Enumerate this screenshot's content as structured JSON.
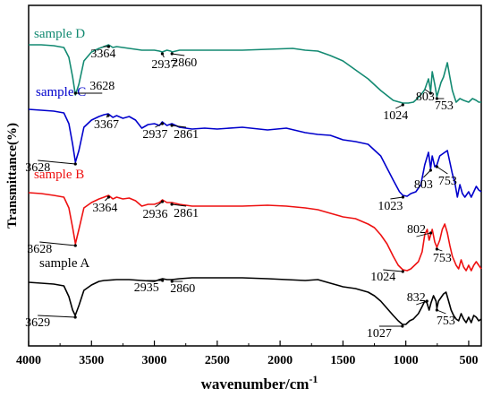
{
  "chart_data": {
    "type": "line",
    "title": "",
    "xlabel": "wavenumber/cm",
    "xlabel_sup": "-1",
    "ylabel": "Transmittance(%)",
    "xlim": [
      4000,
      400
    ],
    "x_reversed": true,
    "xticks": [
      4000,
      3500,
      3000,
      2500,
      2000,
      1500,
      1000,
      500
    ],
    "xtick_labels": [
      "4000",
      "3500",
      "3000",
      "2500",
      "2000",
      "1500",
      "1000",
      "500"
    ],
    "y_tick_labels_shown": false,
    "series": [
      {
        "name": "sample D",
        "color": "#138a72",
        "points": [
          [
            4000,
            44
          ],
          [
            3900,
            44
          ],
          [
            3800,
            45
          ],
          [
            3720,
            47
          ],
          [
            3680,
            58
          ],
          [
            3650,
            80
          ],
          [
            3628,
            100
          ],
          [
            3600,
            88
          ],
          [
            3560,
            62
          ],
          [
            3500,
            52
          ],
          [
            3440,
            48
          ],
          [
            3400,
            46
          ],
          [
            3364,
            44
          ],
          [
            3330,
            47
          ],
          [
            3300,
            46
          ],
          [
            3250,
            47
          ],
          [
            3200,
            48
          ],
          [
            3150,
            49
          ],
          [
            3100,
            50
          ],
          [
            3050,
            50
          ],
          [
            3000,
            50
          ],
          [
            2960,
            51
          ],
          [
            2937,
            52
          ],
          [
            2900,
            50
          ],
          [
            2870,
            51
          ],
          [
            2860,
            52
          ],
          [
            2800,
            50
          ],
          [
            2700,
            50
          ],
          [
            2500,
            50
          ],
          [
            2300,
            50
          ],
          [
            2100,
            49
          ],
          [
            1900,
            48
          ],
          [
            1800,
            50
          ],
          [
            1700,
            51
          ],
          [
            1600,
            56
          ],
          [
            1500,
            62
          ],
          [
            1400,
            72
          ],
          [
            1300,
            82
          ],
          [
            1200,
            95
          ],
          [
            1100,
            106
          ],
          [
            1024,
            109
          ],
          [
            980,
            109
          ],
          [
            940,
            108
          ],
          [
            900,
            103
          ],
          [
            870,
            98
          ],
          [
            850,
            94
          ],
          [
            820,
            82
          ],
          [
            803,
            96
          ],
          [
            790,
            74
          ],
          [
            770,
            88
          ],
          [
            753,
            102
          ],
          [
            720,
            86
          ],
          [
            700,
            80
          ],
          [
            670,
            64
          ],
          [
            650,
            80
          ],
          [
            630,
            95
          ],
          [
            600,
            108
          ],
          [
            570,
            104
          ],
          [
            540,
            106
          ],
          [
            500,
            108
          ],
          [
            470,
            104
          ],
          [
            440,
            106
          ],
          [
            420,
            108
          ],
          [
            400,
            108
          ]
        ]
      },
      {
        "name": "sample C",
        "color": "#0000cc",
        "points": [
          [
            4000,
            116
          ],
          [
            3900,
            117
          ],
          [
            3800,
            118
          ],
          [
            3720,
            120
          ],
          [
            3680,
            132
          ],
          [
            3650,
            155
          ],
          [
            3628,
            175
          ],
          [
            3600,
            162
          ],
          [
            3560,
            136
          ],
          [
            3500,
            128
          ],
          [
            3440,
            124
          ],
          [
            3400,
            122
          ],
          [
            3367,
            121
          ],
          [
            3330,
            125
          ],
          [
            3300,
            123
          ],
          [
            3250,
            126
          ],
          [
            3200,
            124
          ],
          [
            3150,
            128
          ],
          [
            3100,
            137
          ],
          [
            3050,
            133
          ],
          [
            3000,
            132
          ],
          [
            2960,
            134
          ],
          [
            2937,
            130
          ],
          [
            2900,
            134
          ],
          [
            2861,
            132
          ],
          [
            2800,
            136
          ],
          [
            2700,
            138
          ],
          [
            2600,
            137
          ],
          [
            2500,
            138
          ],
          [
            2300,
            136
          ],
          [
            2100,
            139
          ],
          [
            1950,
            137
          ],
          [
            1800,
            142
          ],
          [
            1700,
            144
          ],
          [
            1600,
            145
          ],
          [
            1500,
            150
          ],
          [
            1400,
            152
          ],
          [
            1300,
            155
          ],
          [
            1200,
            168
          ],
          [
            1100,
            195
          ],
          [
            1050,
            208
          ],
          [
            1023,
            212
          ],
          [
            990,
            213
          ],
          [
            960,
            210
          ],
          [
            920,
            208
          ],
          [
            880,
            200
          ],
          [
            850,
            178
          ],
          [
            820,
            164
          ],
          [
            803,
            182
          ],
          [
            790,
            168
          ],
          [
            770,
            180
          ],
          [
            753,
            178
          ],
          [
            730,
            168
          ],
          [
            700,
            165
          ],
          [
            670,
            162
          ],
          [
            650,
            175
          ],
          [
            630,
            188
          ],
          [
            610,
            198
          ],
          [
            590,
            214
          ],
          [
            570,
            200
          ],
          [
            550,
            210
          ],
          [
            530,
            214
          ],
          [
            500,
            208
          ],
          [
            480,
            214
          ],
          [
            460,
            208
          ],
          [
            440,
            202
          ],
          [
            420,
            206
          ],
          [
            400,
            208
          ]
        ]
      },
      {
        "name": "sample B",
        "color": "#ee1111",
        "points": [
          [
            4000,
            209
          ],
          [
            3900,
            210
          ],
          [
            3800,
            212
          ],
          [
            3720,
            214
          ],
          [
            3680,
            226
          ],
          [
            3650,
            248
          ],
          [
            3628,
            266
          ],
          [
            3600,
            250
          ],
          [
            3560,
            226
          ],
          [
            3500,
            220
          ],
          [
            3440,
            216
          ],
          [
            3400,
            214
          ],
          [
            3364,
            212
          ],
          [
            3330,
            216
          ],
          [
            3300,
            214
          ],
          [
            3250,
            216
          ],
          [
            3200,
            215
          ],
          [
            3150,
            218
          ],
          [
            3100,
            224
          ],
          [
            3050,
            222
          ],
          [
            3000,
            222
          ],
          [
            2960,
            220
          ],
          [
            2936,
            217
          ],
          [
            2900,
            220
          ],
          [
            2861,
            220
          ],
          [
            2800,
            222
          ],
          [
            2700,
            224
          ],
          [
            2500,
            224
          ],
          [
            2300,
            224
          ],
          [
            2100,
            223
          ],
          [
            1950,
            224
          ],
          [
            1800,
            226
          ],
          [
            1700,
            228
          ],
          [
            1600,
            232
          ],
          [
            1500,
            236
          ],
          [
            1400,
            238
          ],
          [
            1300,
            244
          ],
          [
            1250,
            248
          ],
          [
            1200,
            256
          ],
          [
            1150,
            266
          ],
          [
            1100,
            280
          ],
          [
            1060,
            290
          ],
          [
            1024,
            295
          ],
          [
            990,
            296
          ],
          [
            960,
            294
          ],
          [
            930,
            290
          ],
          [
            900,
            286
          ],
          [
            870,
            275
          ],
          [
            850,
            256
          ],
          [
            830,
            250
          ],
          [
            815,
            262
          ],
          [
            802,
            256
          ],
          [
            790,
            250
          ],
          [
            770,
            264
          ],
          [
            753,
            270
          ],
          [
            730,
            262
          ],
          [
            710,
            250
          ],
          [
            690,
            244
          ],
          [
            670,
            254
          ],
          [
            650,
            268
          ],
          [
            630,
            280
          ],
          [
            600,
            290
          ],
          [
            580,
            294
          ],
          [
            560,
            284
          ],
          [
            540,
            292
          ],
          [
            520,
            296
          ],
          [
            500,
            290
          ],
          [
            480,
            296
          ],
          [
            460,
            290
          ],
          [
            440,
            286
          ],
          [
            420,
            290
          ],
          [
            400,
            294
          ]
        ]
      },
      {
        "name": "sample A",
        "color": "#000000",
        "points": [
          [
            4000,
            309
          ],
          [
            3900,
            310
          ],
          [
            3800,
            311
          ],
          [
            3720,
            313
          ],
          [
            3680,
            325
          ],
          [
            3650,
            340
          ],
          [
            3629,
            346
          ],
          [
            3600,
            335
          ],
          [
            3560,
            318
          ],
          [
            3500,
            312
          ],
          [
            3440,
            308
          ],
          [
            3400,
            307
          ],
          [
            3300,
            306
          ],
          [
            3200,
            306
          ],
          [
            3100,
            307
          ],
          [
            3000,
            308
          ],
          [
            2960,
            306
          ],
          [
            2935,
            305
          ],
          [
            2900,
            306
          ],
          [
            2860,
            306
          ],
          [
            2800,
            305
          ],
          [
            2700,
            304
          ],
          [
            2500,
            304
          ],
          [
            2300,
            304
          ],
          [
            2100,
            305
          ],
          [
            1950,
            306
          ],
          [
            1800,
            307
          ],
          [
            1700,
            306
          ],
          [
            1600,
            310
          ],
          [
            1500,
            314
          ],
          [
            1400,
            316
          ],
          [
            1300,
            320
          ],
          [
            1250,
            324
          ],
          [
            1200,
            330
          ],
          [
            1150,
            338
          ],
          [
            1100,
            346
          ],
          [
            1060,
            352
          ],
          [
            1027,
            356
          ],
          [
            1000,
            356
          ],
          [
            970,
            352
          ],
          [
            940,
            350
          ],
          [
            900,
            344
          ],
          [
            870,
            336
          ],
          [
            850,
            330
          ],
          [
            832,
            332
          ],
          [
            815,
            340
          ],
          [
            800,
            332
          ],
          [
            780,
            324
          ],
          [
            760,
            330
          ],
          [
            753,
            338
          ],
          [
            740,
            330
          ],
          [
            720,
            326
          ],
          [
            700,
            322
          ],
          [
            680,
            320
          ],
          [
            660,
            330
          ],
          [
            640,
            340
          ],
          [
            620,
            346
          ],
          [
            600,
            350
          ],
          [
            580,
            352
          ],
          [
            560,
            344
          ],
          [
            540,
            350
          ],
          [
            520,
            354
          ],
          [
            500,
            348
          ],
          [
            480,
            354
          ],
          [
            460,
            346
          ],
          [
            440,
            348
          ],
          [
            420,
            352
          ],
          [
            400,
            350
          ]
        ]
      }
    ],
    "series_labels": [
      {
        "text": "sample D",
        "color": "#138a72"
      },
      {
        "text": "sample C",
        "color": "#0000cc"
      },
      {
        "text": "sample B",
        "color": "#ee1111"
      },
      {
        "text": "sample A",
        "color": "#000000"
      }
    ],
    "annotations": [
      {
        "text": "3364",
        "x": 3364,
        "series": "sample D"
      },
      {
        "text": "3628",
        "x": 3628,
        "series": "sample D"
      },
      {
        "text": "2937",
        "x": 2937,
        "series": "sample D"
      },
      {
        "text": "2860",
        "x": 2860,
        "series": "sample D"
      },
      {
        "text": "1024",
        "x": 1024,
        "series": "sample D"
      },
      {
        "text": "803",
        "x": 803,
        "series": "sample D"
      },
      {
        "text": "753",
        "x": 753,
        "series": "sample D"
      },
      {
        "text": "3628",
        "x": 3628,
        "series": "sample C"
      },
      {
        "text": "3367",
        "x": 3367,
        "series": "sample C"
      },
      {
        "text": "2937",
        "x": 2937,
        "series": "sample C"
      },
      {
        "text": "2861",
        "x": 2861,
        "series": "sample C"
      },
      {
        "text": "1023",
        "x": 1023,
        "series": "sample C"
      },
      {
        "text": "803",
        "x": 803,
        "series": "sample C"
      },
      {
        "text": "753",
        "x": 753,
        "series": "sample C"
      },
      {
        "text": "3628",
        "x": 3628,
        "series": "sample B"
      },
      {
        "text": "3364",
        "x": 3364,
        "series": "sample B"
      },
      {
        "text": "2936",
        "x": 2936,
        "series": "sample B"
      },
      {
        "text": "2861",
        "x": 2861,
        "series": "sample B"
      },
      {
        "text": "1024",
        "x": 1024,
        "series": "sample B"
      },
      {
        "text": "802",
        "x": 802,
        "series": "sample B"
      },
      {
        "text": "753",
        "x": 753,
        "series": "sample B"
      },
      {
        "text": "3629",
        "x": 3629,
        "series": "sample A"
      },
      {
        "text": "2935",
        "x": 2935,
        "series": "sample A"
      },
      {
        "text": "2860",
        "x": 2860,
        "series": "sample A"
      },
      {
        "text": "1027",
        "x": 1027,
        "series": "sample A"
      },
      {
        "text": "832",
        "x": 832,
        "series": "sample A"
      },
      {
        "text": "753",
        "x": 753,
        "series": "sample A"
      }
    ]
  }
}
